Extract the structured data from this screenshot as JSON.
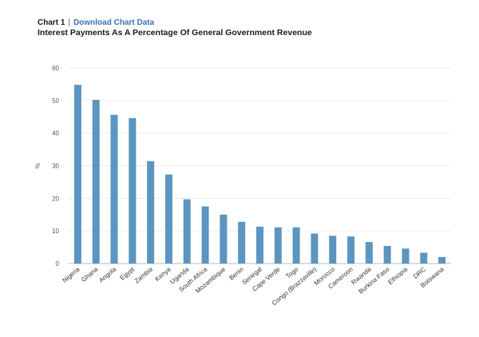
{
  "header": {
    "chart_number": "Chart 1",
    "separator": "|",
    "download_link": "Download Chart Data"
  },
  "chart_data": {
    "type": "bar",
    "title": "Interest Payments As A Percentage Of General Government Revenue",
    "xlabel": "",
    "ylabel": "%",
    "ylim": [
      0,
      60
    ],
    "yticks": [
      0,
      10,
      20,
      30,
      40,
      50,
      60
    ],
    "grid": true,
    "bar_color": "#5b95c0",
    "categories": [
      "Nigeria",
      "Ghana",
      "Angola",
      "Egypt",
      "Zambia",
      "Kenya",
      "Uganda",
      "South Africa",
      "Mozambique",
      "Benin",
      "Senegal",
      "Cape Verde",
      "Togo",
      "Congo (Brazzaville)",
      "Morocco",
      "Cameroon",
      "Rwanda",
      "Burkina Faso",
      "Ethiopia",
      "DRC",
      "Botswana"
    ],
    "values": [
      54.8,
      50.2,
      45.6,
      44.6,
      31.4,
      27.3,
      19.7,
      17.5,
      15.0,
      12.8,
      11.3,
      11.1,
      11.1,
      9.2,
      8.5,
      8.3,
      6.6,
      5.4,
      4.6,
      3.3,
      2.0
    ]
  }
}
